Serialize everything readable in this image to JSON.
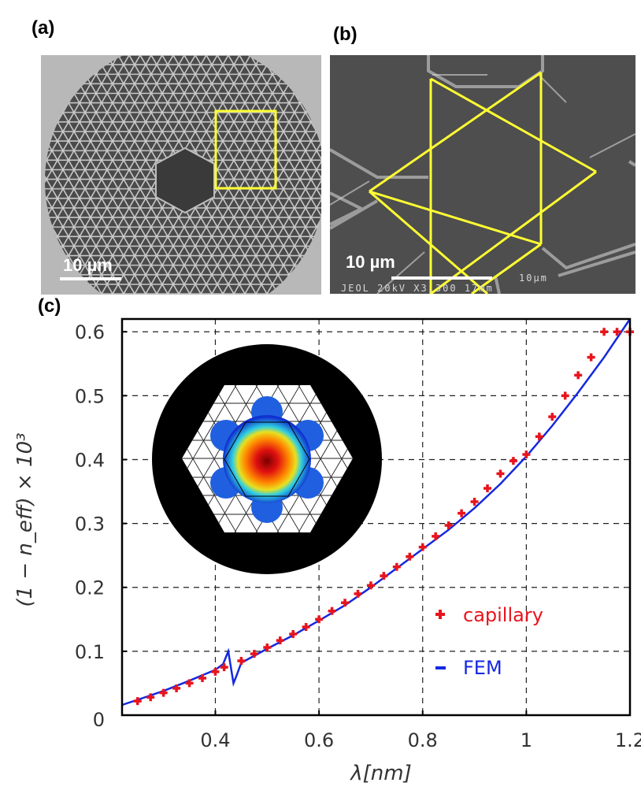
{
  "panels": {
    "a": {
      "label": "(a)",
      "scale_label": "10 µm"
    },
    "b": {
      "label": "(b)",
      "scale_label": "10 µm",
      "instrument_text": "JEOL  20kV   X3,300  17mm",
      "scale_caption": "10µm"
    },
    "c": {
      "label": "(c)"
    }
  },
  "colors": {
    "highlight": "#ffff33",
    "capillary": "#e8141c",
    "fem": "#1428e0"
  },
  "chart_data": {
    "type": "scatter",
    "title": "",
    "xlabel": "λ[nm]",
    "ylabel": "(1 − n_eff) × 10³",
    "xlim": [
      0.22,
      1.2
    ],
    "ylim": [
      0,
      0.62
    ],
    "xticks": [
      0.4,
      0.6,
      0.8,
      1.0,
      1.2
    ],
    "xtick_labels": [
      "0.4",
      "0.6",
      "0.8",
      "1",
      "1.2"
    ],
    "yticks": [
      0,
      0.1,
      0.2,
      0.3,
      0.4,
      0.5,
      0.6
    ],
    "ytick_labels": [
      "0",
      "0.1",
      "0.2",
      "0.3",
      "0.4",
      "0.5",
      "0.6"
    ],
    "grid": true,
    "legend_position": "bottom-right",
    "series": [
      {
        "name": "capillary",
        "marker": "plus",
        "x": [
          0.25,
          0.275,
          0.3,
          0.325,
          0.35,
          0.375,
          0.4,
          0.417,
          0.45,
          0.475,
          0.5,
          0.525,
          0.55,
          0.575,
          0.6,
          0.625,
          0.65,
          0.675,
          0.7,
          0.725,
          0.75,
          0.775,
          0.8,
          0.825,
          0.85,
          0.875,
          0.9,
          0.925,
          0.95,
          0.975,
          1.0,
          1.025,
          1.05,
          1.075,
          1.1,
          1.125,
          1.15,
          1.175,
          1.2
        ],
        "y": [
          0.022,
          0.028,
          0.035,
          0.042,
          0.05,
          0.058,
          0.068,
          0.075,
          0.085,
          0.096,
          0.106,
          0.117,
          0.127,
          0.138,
          0.15,
          0.163,
          0.176,
          0.19,
          0.203,
          0.218,
          0.232,
          0.248,
          0.263,
          0.28,
          0.297,
          0.316,
          0.334,
          0.355,
          0.378,
          0.398,
          0.408,
          0.436,
          0.467,
          0.5,
          0.532,
          0.56,
          0.6,
          0.6,
          0.6
        ]
      },
      {
        "name": "FEM",
        "marker": "line",
        "x": [
          0.22,
          0.25,
          0.3,
          0.35,
          0.4,
          0.415,
          0.425,
          0.435,
          0.44,
          0.45,
          0.5,
          0.55,
          0.6,
          0.65,
          0.7,
          0.75,
          0.8,
          0.85,
          0.9,
          0.95,
          1.0,
          1.05,
          1.1,
          1.15,
          1.2
        ],
        "y": [
          0.016,
          0.024,
          0.038,
          0.054,
          0.071,
          0.08,
          0.1,
          0.05,
          0.06,
          0.082,
          0.104,
          0.125,
          0.148,
          0.172,
          0.2,
          0.23,
          0.26,
          0.29,
          0.324,
          0.362,
          0.405,
          0.453,
          0.505,
          0.56,
          0.62
        ]
      }
    ]
  }
}
